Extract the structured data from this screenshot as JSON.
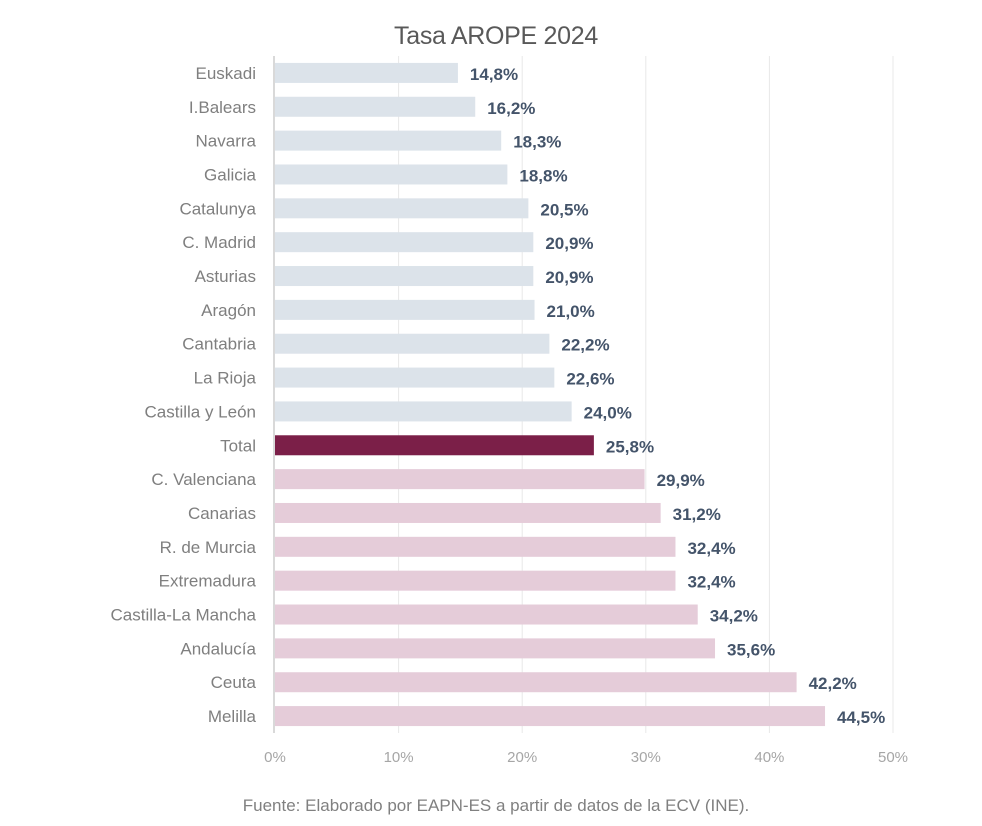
{
  "chart_data": {
    "type": "bar",
    "orientation": "horizontal",
    "title": "Tasa AROPE 2024",
    "xlabel": "",
    "ylabel": "",
    "xlim": [
      0,
      50
    ],
    "x_ticks": [
      0,
      10,
      20,
      30,
      40,
      50
    ],
    "x_tick_labels": [
      "0%",
      "10%",
      "20%",
      "30%",
      "40%",
      "50%"
    ],
    "grid": "vertical",
    "legend": "none",
    "categories": [
      "Euskadi",
      "I.Balears",
      "Navarra",
      "Galicia",
      "Catalunya",
      "C. Madrid",
      "Asturias",
      "Aragón",
      "Cantabria",
      "La Rioja",
      "Castilla y León",
      "Total",
      "C. Valenciana",
      "Canarias",
      "R. de Murcia",
      "Extremadura",
      "Castilla-La Mancha",
      "Andalucía",
      "Ceuta",
      "Melilla"
    ],
    "values": [
      14.8,
      16.2,
      18.3,
      18.8,
      20.5,
      20.9,
      20.9,
      21.0,
      22.2,
      22.6,
      24.0,
      25.8,
      29.9,
      31.2,
      32.4,
      32.4,
      34.2,
      35.6,
      42.2,
      44.5
    ],
    "value_labels": [
      "14,8%",
      "16,2%",
      "18,3%",
      "18,8%",
      "20,5%",
      "20,9%",
      "20,9%",
      "21,0%",
      "22,2%",
      "22,6%",
      "24,0%",
      "25,8%",
      "29,9%",
      "31,2%",
      "32,4%",
      "32,4%",
      "34,2%",
      "35,6%",
      "42,2%",
      "44,5%"
    ],
    "groups": [
      "below",
      "below",
      "below",
      "below",
      "below",
      "below",
      "below",
      "below",
      "below",
      "below",
      "below",
      "total",
      "above",
      "above",
      "above",
      "above",
      "above",
      "above",
      "above",
      "above"
    ],
    "colors": {
      "below": "#dce3ea",
      "total": "#7b1f48",
      "above": "#e5ccd9"
    },
    "source": "Fuente: Elaborado por EAPN-ES a partir de datos de la ECV (INE)."
  }
}
